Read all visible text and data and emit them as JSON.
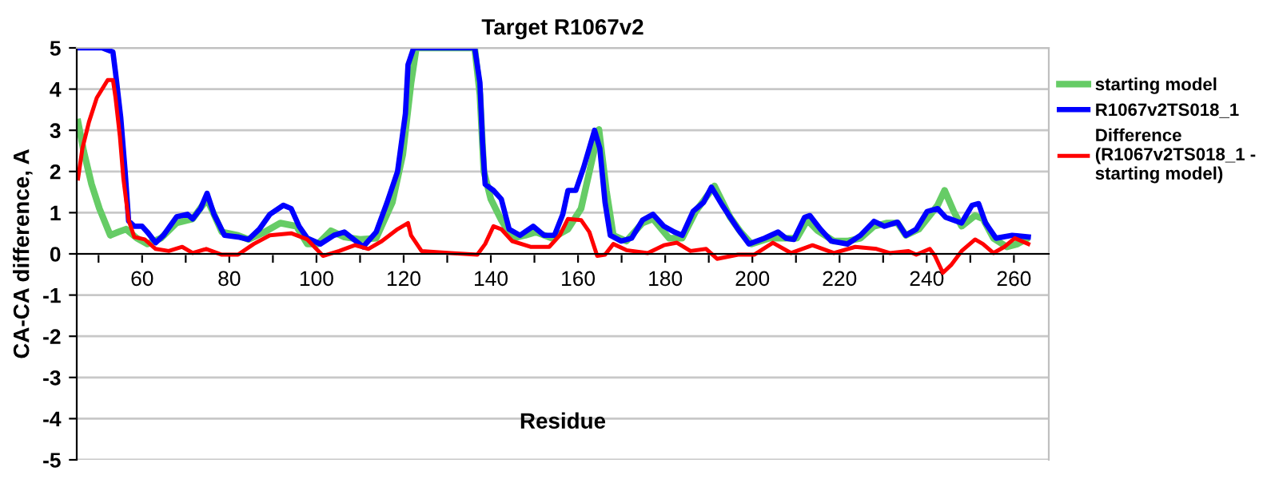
{
  "chart_data": {
    "type": "line",
    "title": "Target R1067v2",
    "xlabel": "Residue",
    "ylabel": "CA-CA difference, A",
    "xlim": [
      45,
      268
    ],
    "ylim": [
      -5,
      5
    ],
    "yticks": [
      -5,
      -4,
      -3,
      -2,
      -1,
      0,
      1,
      2,
      3,
      4,
      5
    ],
    "xticks": [
      {
        "value": 50,
        "label": null
      },
      60,
      {
        "value": 70,
        "label": null
      },
      80,
      {
        "value": 90,
        "label": null
      },
      100,
      {
        "value": 110,
        "label": null
      },
      120,
      {
        "value": 130,
        "label": null
      },
      140,
      {
        "value": 150,
        "label": null
      },
      160,
      {
        "value": 170,
        "label": null
      },
      180,
      {
        "value": 190,
        "label": null
      },
      200,
      {
        "value": 210,
        "label": null
      },
      220,
      {
        "value": 230,
        "label": null
      },
      240,
      {
        "value": 250,
        "label": null
      },
      260
    ],
    "grid": "y",
    "legend": "right",
    "marker": "none",
    "line_style": "solid",
    "series": [
      {
        "name": "starting model",
        "color": "#66cc66",
        "x": [
          45.3,
          46.6,
          48.4,
          50.2,
          52.7,
          54.5,
          56.3,
          58.8,
          61.2,
          64.3,
          67.9,
          71.6,
          74.9,
          78.3,
          82,
          84.4,
          88.1,
          91.7,
          95.4,
          97.9,
          100.3,
          103.3,
          106.4,
          110,
          113.7,
          117.4,
          119.8,
          121.7,
          122.9,
          136.3,
          137.5,
          138.4,
          140,
          142.4,
          144.9,
          147.9,
          150.3,
          154,
          157.7,
          160.7,
          163.2,
          164.8,
          166.5,
          168.1,
          171.1,
          174.8,
          177.2,
          180.9,
          183.9,
          187,
          191.3,
          194.9,
          197.3,
          199.8,
          204,
          207.7,
          210.2,
          212.6,
          215,
          218.7,
          221.8,
          224.8,
          227.9,
          230.9,
          233.3,
          235.2,
          238.2,
          240.7,
          242.5,
          244.1,
          246.2,
          248,
          251.1,
          252.9,
          255.3,
          258.4,
          260.8,
          262.7
        ],
        "values": [
          3.2,
          2.49,
          1.69,
          1.1,
          0.45,
          0.53,
          0.6,
          0.38,
          0.24,
          0.38,
          0.75,
          0.85,
          1.33,
          0.53,
          0.45,
          0.35,
          0.53,
          0.75,
          0.67,
          0.24,
          0.24,
          0.56,
          0.41,
          0.35,
          0.38,
          1.25,
          2.41,
          4.15,
          5,
          5,
          3.86,
          2.0,
          1.33,
          0.82,
          0.38,
          0.45,
          0.53,
          0.38,
          0.6,
          1.1,
          2.27,
          3.02,
          1.54,
          0.45,
          0.31,
          0.75,
          0.85,
          0.38,
          0.38,
          1.03,
          1.65,
          0.89,
          0.53,
          0.24,
          0.38,
          0.38,
          0.38,
          0.82,
          0.56,
          0.31,
          0.31,
          0.38,
          0.67,
          0.75,
          0.75,
          0.45,
          0.6,
          0.93,
          1.18,
          1.54,
          1.03,
          0.67,
          0.93,
          0.85,
          0.38,
          0.17,
          0.24,
          0.35
        ]
      },
      {
        "name": "R1067v2TS018_1",
        "color": "#0000ff",
        "x": [
          45.3,
          50.8,
          53.3,
          53.9,
          55.1,
          56.1,
          56.9,
          58.2,
          60,
          61.2,
          63.1,
          64.9,
          67.9,
          70.4,
          71.6,
          73.4,
          74.9,
          76.5,
          78.9,
          82,
          84.4,
          86.9,
          89.3,
          92.4,
          94.2,
          96,
          97.9,
          100.9,
          104,
          106.4,
          108.2,
          110.7,
          113.7,
          116.2,
          118.6,
          120.4,
          121,
          122.3,
          136.3,
          137.5,
          138.1,
          138.7,
          140.6,
          142.4,
          144.2,
          146.7,
          149.7,
          152.2,
          154.6,
          156.5,
          157.7,
          159.5,
          161.3,
          163.8,
          165,
          166.2,
          167.4,
          169.9,
          172.3,
          174.8,
          177.2,
          179.7,
          182.1,
          183.9,
          186.4,
          188.8,
          190.6,
          193.1,
          196.7,
          199.2,
          202.8,
          205.9,
          207.7,
          209.5,
          212,
          213.2,
          215.6,
          218.1,
          221.8,
          224.8,
          227.9,
          230.3,
          233.3,
          235.2,
          237.6,
          240.1,
          242.5,
          244.3,
          248,
          250.4,
          251.9,
          253.5,
          255.9,
          259.6,
          263.3
        ],
        "values": [
          5,
          5,
          4.9,
          4.4,
          3.3,
          2.0,
          0.8,
          0.67,
          0.67,
          0.53,
          0.27,
          0.45,
          0.9,
          0.96,
          0.85,
          1.1,
          1.47,
          0.96,
          0.45,
          0.41,
          0.35,
          0.6,
          0.96,
          1.18,
          1.1,
          0.67,
          0.38,
          0.24,
          0.45,
          0.53,
          0.38,
          0.17,
          0.53,
          1.25,
          2.0,
          3.4,
          4.59,
          5,
          5,
          4.15,
          2.7,
          1.69,
          1.54,
          1.33,
          0.6,
          0.45,
          0.67,
          0.45,
          0.45,
          0.96,
          1.54,
          1.54,
          2.1,
          3.0,
          2.56,
          1.25,
          0.45,
          0.31,
          0.38,
          0.82,
          0.96,
          0.67,
          0.53,
          0.45,
          1.03,
          1.25,
          1.62,
          1.18,
          0.6,
          0.24,
          0.38,
          0.53,
          0.38,
          0.35,
          0.89,
          0.93,
          0.6,
          0.31,
          0.24,
          0.45,
          0.79,
          0.67,
          0.77,
          0.45,
          0.6,
          1.03,
          1.1,
          0.89,
          0.75,
          1.18,
          1.22,
          0.75,
          0.38,
          0.45,
          0.41
        ]
      },
      {
        "name": "Difference\n(R1067v2TS018_1 -\nstarting model)",
        "color": "#ff0000",
        "x": [
          45.3,
          46.3,
          47.8,
          49.6,
          52.1,
          53.3,
          53.9,
          54.9,
          55.7,
          56.9,
          58.2,
          60.6,
          63.1,
          66.1,
          69.2,
          71.6,
          74.7,
          78.3,
          82,
          85.6,
          89.3,
          94.2,
          97.9,
          101.5,
          105.2,
          108.8,
          111.9,
          115,
          118.6,
          121,
          121.7,
          124.1,
          130.8,
          136.9,
          138.7,
          140.6,
          142.4,
          144.9,
          149.1,
          153.4,
          155.8,
          157.7,
          160.7,
          162.6,
          164.4,
          166.2,
          168.1,
          171.1,
          176,
          179.7,
          182.7,
          185.8,
          189.4,
          191.9,
          196.7,
          200.4,
          204.7,
          208.9,
          213.8,
          218.7,
          223.6,
          228.5,
          231.5,
          235.8,
          237.6,
          240.7,
          241.9,
          243.7,
          245.6,
          248,
          251.1,
          252.9,
          255.3,
          257.8,
          260.2,
          263.3
        ],
        "values": [
          1.83,
          2.56,
          3.2,
          3.79,
          4.22,
          4.22,
          3.79,
          2.85,
          1.83,
          0.82,
          0.41,
          0.35,
          0.12,
          0.07,
          0.17,
          0.02,
          0.12,
          -0.02,
          -0.02,
          0.24,
          0.45,
          0.5,
          0.35,
          -0.05,
          0.07,
          0.21,
          0.12,
          0.31,
          0.6,
          0.75,
          0.45,
          0.07,
          0.02,
          -0.02,
          0.24,
          0.67,
          0.6,
          0.31,
          0.17,
          0.17,
          0.45,
          0.85,
          0.82,
          0.53,
          -0.05,
          -0.02,
          0.24,
          0.09,
          0.02,
          0.21,
          0.27,
          0.07,
          0.12,
          -0.12,
          -0.02,
          -0.02,
          0.27,
          0.02,
          0.21,
          0.02,
          0.17,
          0.12,
          0.02,
          0.07,
          -0.02,
          0.12,
          -0.05,
          -0.46,
          -0.27,
          0.07,
          0.35,
          0.24,
          0.02,
          0.17,
          0.38,
          0.24
        ]
      }
    ]
  }
}
